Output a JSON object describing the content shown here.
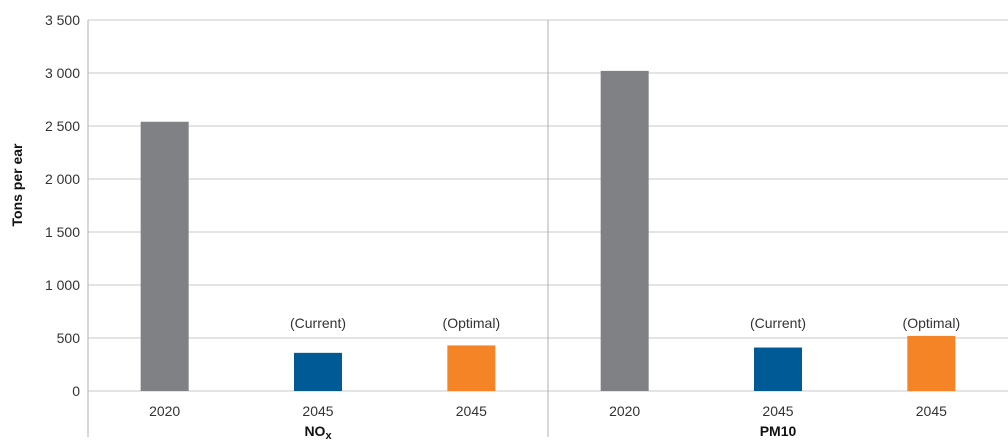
{
  "chart_data": {
    "type": "bar",
    "ylabel": "Tons per ear",
    "ylim": [
      0,
      3500
    ],
    "yticks": [
      0,
      500,
      1000,
      1500,
      2000,
      2500,
      3000,
      3500
    ],
    "ytick_labels": [
      "0",
      "500",
      "1 000",
      "1 500",
      "2 000",
      "2 500",
      "3 000",
      "3 500"
    ],
    "grid": true,
    "groups": [
      {
        "name": "NOx",
        "name_main": "NO",
        "name_sub": "x",
        "bars": [
          {
            "category": "2020",
            "annotation": "",
            "value": 2540,
            "color": "#808184"
          },
          {
            "category": "2045",
            "annotation": "(Current)",
            "value": 360,
            "color": "#005a96"
          },
          {
            "category": "2045",
            "annotation": "(Optimal)",
            "value": 430,
            "color": "#f58426"
          }
        ]
      },
      {
        "name": "PM10",
        "name_main": "PM10",
        "name_sub": "",
        "bars": [
          {
            "category": "2020",
            "annotation": "",
            "value": 3020,
            "color": "#808184"
          },
          {
            "category": "2045",
            "annotation": "(Current)",
            "value": 410,
            "color": "#005a96"
          },
          {
            "category": "2045",
            "annotation": "(Optimal)",
            "value": 520,
            "color": "#f58426"
          }
        ]
      }
    ]
  }
}
